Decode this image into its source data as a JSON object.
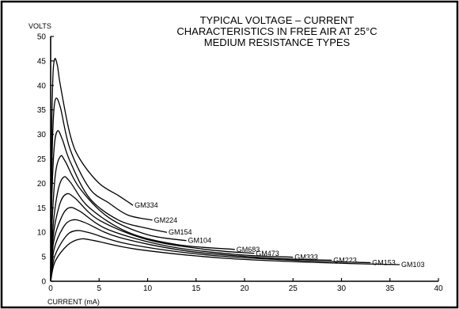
{
  "chart_data": {
    "type": "line",
    "title": [
      "TYPICAL VOLTAGE – CURRENT",
      "CHARACTERISTICS IN FREE AIR AT 25°C",
      "MEDIUM RESISTANCE TYPES"
    ],
    "xlabel": "CURRENT (mA)",
    "ylabel": "VOLTS",
    "xlim": [
      0,
      40
    ],
    "ylim": [
      0,
      50
    ],
    "xticks": [
      0,
      5,
      10,
      15,
      20,
      25,
      30,
      35,
      40
    ],
    "yticks": [
      0,
      5,
      10,
      15,
      20,
      25,
      30,
      35,
      40,
      45,
      50
    ],
    "grid": false,
    "series": [
      {
        "name": "GM334",
        "points": [
          [
            0,
            0
          ],
          [
            0.05,
            20
          ],
          [
            0.2,
            40
          ],
          [
            0.4,
            45.3
          ],
          [
            0.7,
            44
          ],
          [
            1,
            40
          ],
          [
            2,
            30
          ],
          [
            3,
            25
          ],
          [
            5,
            20
          ],
          [
            7,
            17.5
          ],
          [
            8.5,
            15.5
          ]
        ]
      },
      {
        "name": "GM224",
        "points": [
          [
            0,
            0
          ],
          [
            0.08,
            18
          ],
          [
            0.25,
            32
          ],
          [
            0.5,
            37.2
          ],
          [
            1,
            35.5
          ],
          [
            2,
            27
          ],
          [
            4,
            19
          ],
          [
            6,
            16
          ],
          [
            8,
            13.5
          ],
          [
            10.5,
            12.5
          ]
        ]
      },
      {
        "name": "GM154",
        "points": [
          [
            0,
            0
          ],
          [
            0.1,
            15
          ],
          [
            0.35,
            27
          ],
          [
            0.7,
            30.7
          ],
          [
            1.2,
            29
          ],
          [
            2,
            24.5
          ],
          [
            4,
            17
          ],
          [
            7,
            12.5
          ],
          [
            10,
            10.8
          ],
          [
            12,
            10
          ]
        ]
      },
      {
        "name": "GM104",
        "points": [
          [
            0,
            0
          ],
          [
            0.15,
            12
          ],
          [
            0.5,
            22
          ],
          [
            1,
            25.5
          ],
          [
            1.5,
            24.5
          ],
          [
            3,
            19
          ],
          [
            6,
            13
          ],
          [
            10,
            9.5
          ],
          [
            14,
            8.3
          ]
        ]
      },
      {
        "name": "GM683",
        "points": [
          [
            0,
            0
          ],
          [
            0.2,
            10
          ],
          [
            0.7,
            18
          ],
          [
            1.3,
            21.2
          ],
          [
            2,
            20.3
          ],
          [
            4,
            15
          ],
          [
            8,
            10
          ],
          [
            13,
            7.5
          ],
          [
            19,
            6.5
          ]
        ]
      },
      {
        "name": "GM473",
        "points": [
          [
            0,
            0
          ],
          [
            0.25,
            9
          ],
          [
            0.9,
            15.5
          ],
          [
            1.6,
            17.8
          ],
          [
            2.5,
            17
          ],
          [
            5,
            12.5
          ],
          [
            10,
            8.5
          ],
          [
            16,
            6.5
          ],
          [
            21,
            5.7
          ]
        ]
      },
      {
        "name": "GM333",
        "points": [
          [
            0,
            0
          ],
          [
            0.3,
            8
          ],
          [
            1.1,
            13
          ],
          [
            1.9,
            15
          ],
          [
            3,
            14.3
          ],
          [
            6,
            10.5
          ],
          [
            12,
            7.2
          ],
          [
            19,
            5.5
          ],
          [
            25,
            4.9
          ]
        ]
      },
      {
        "name": "GM223",
        "points": [
          [
            0,
            0
          ],
          [
            0.35,
            6.5
          ],
          [
            1.3,
            11
          ],
          [
            2.2,
            12.5
          ],
          [
            3.5,
            12
          ],
          [
            7,
            9
          ],
          [
            14,
            6.2
          ],
          [
            22,
            4.8
          ],
          [
            29,
            4.3
          ]
        ]
      },
      {
        "name": "GM153",
        "points": [
          [
            0,
            0
          ],
          [
            0.4,
            5
          ],
          [
            1.5,
            9
          ],
          [
            2.5,
            10.3
          ],
          [
            4,
            9.9
          ],
          [
            8,
            7.6
          ],
          [
            16,
            5.4
          ],
          [
            25,
            4.3
          ],
          [
            33,
            3.8
          ]
        ]
      },
      {
        "name": "GM103",
        "points": [
          [
            0,
            0
          ],
          [
            0.45,
            4
          ],
          [
            1.7,
            7.3
          ],
          [
            3,
            8.6
          ],
          [
            4.5,
            8.3
          ],
          [
            9,
            6.5
          ],
          [
            18,
            4.7
          ],
          [
            28,
            3.8
          ],
          [
            36,
            3.4
          ]
        ]
      }
    ]
  }
}
